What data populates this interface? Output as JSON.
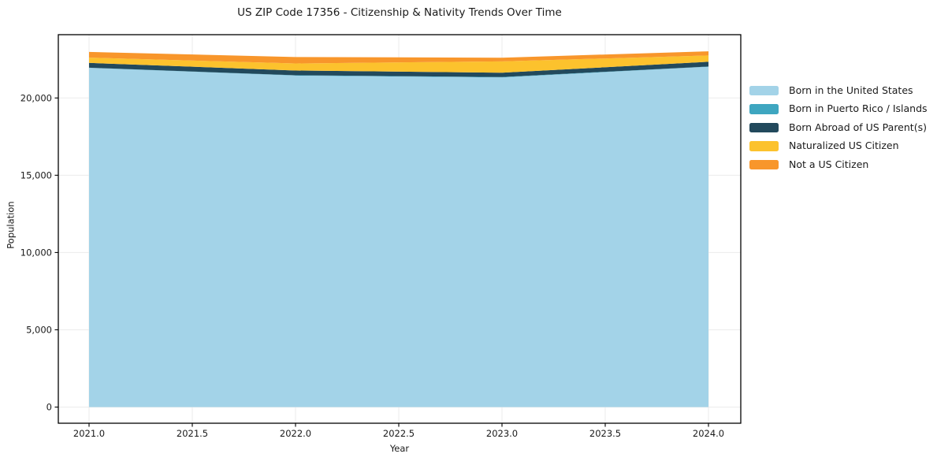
{
  "chart_data": {
    "type": "area",
    "stacked": true,
    "title": "US ZIP Code 17356 - Citizenship & Nativity Trends Over Time",
    "xlabel": "Year",
    "ylabel": "Population",
    "x": [
      2021,
      2022,
      2023,
      2024
    ],
    "series": [
      {
        "name": "Born in the United States",
        "color": "#a3d3e8",
        "values": [
          21950,
          21450,
          21330,
          22020
        ]
      },
      {
        "name": "Born in Puerto Rico / Islands",
        "color": "#3ea6c0",
        "values": [
          10,
          20,
          25,
          15
        ]
      },
      {
        "name": "Born Abroad of US Parent(s)",
        "color": "#22495c",
        "values": [
          310,
          305,
          280,
          305
        ]
      },
      {
        "name": "Naturalized US Citizen",
        "color": "#fcc22d",
        "values": [
          340,
          460,
          730,
          410
        ]
      },
      {
        "name": "Not a US Citizen",
        "color": "#f8962b",
        "values": [
          370,
          410,
          240,
          270
        ]
      }
    ],
    "totals": [
      22980,
      22645,
      22605,
      23020
    ],
    "x_tick_labels": [
      "2021.0",
      "2021.5",
      "2022.0",
      "2022.5",
      "2023.0",
      "2023.5",
      "2024.0"
    ],
    "x_tick_values": [
      2021,
      2021.5,
      2022,
      2022.5,
      2023,
      2023.5,
      2024
    ],
    "y_tick_labels": [
      "0",
      "5,000",
      "10,000",
      "15,000",
      "20,000"
    ],
    "y_tick_values": [
      0,
      5000,
      10000,
      15000,
      20000
    ],
    "xlim": [
      2020.85,
      2024.16
    ],
    "ylim": [
      -1045,
      24100
    ],
    "grid": true,
    "grid_color": "#ebebeb",
    "axis_color": "#000000",
    "legend_position": "right-of-plot"
  }
}
